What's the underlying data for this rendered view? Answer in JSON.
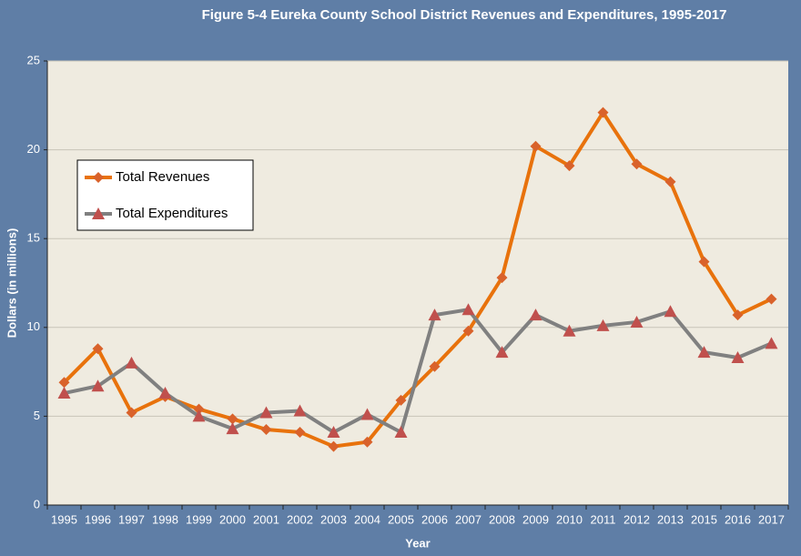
{
  "chart_data": {
    "type": "line",
    "title": "Figure 5-4 Eureka County School District Revenues and Expenditures, 1995-2017",
    "x_label": "Year",
    "y_label": "Dollars (in millions)",
    "categories": [
      "1995",
      "1996",
      "1997",
      "1998",
      "1999",
      "2000",
      "2001",
      "2002",
      "2003",
      "2004",
      "2005",
      "2006",
      "2007",
      "2008",
      "2009",
      "2010",
      "2011",
      "2012",
      "2013",
      "2015",
      "2016",
      "2017"
    ],
    "series": [
      {
        "name": "Total Revenues",
        "color": "#e8720c",
        "marker_color": "#d9622b",
        "marker": "diamond",
        "values": [
          6.9,
          8.8,
          5.2,
          6.1,
          5.4,
          4.85,
          4.25,
          4.1,
          3.3,
          3.55,
          5.9,
          7.8,
          9.8,
          12.8,
          20.2,
          19.1,
          22.1,
          19.2,
          18.2,
          13.7,
          10.7,
          11.6
        ]
      },
      {
        "name": "Total Expenditures",
        "color": "#808080",
        "marker_color": "#c0504d",
        "marker": "triangle",
        "values": [
          6.3,
          6.7,
          8.0,
          6.3,
          5.0,
          4.3,
          5.2,
          5.3,
          4.1,
          5.1,
          4.1,
          10.7,
          11.0,
          8.6,
          10.7,
          9.8,
          10.1,
          10.3,
          10.9,
          8.6,
          8.3,
          9.1
        ]
      }
    ],
    "ylim": [
      0,
      25
    ],
    "yticks": [
      0,
      5,
      10,
      15,
      20,
      25
    ],
    "grid": true,
    "legend": "upper left"
  }
}
